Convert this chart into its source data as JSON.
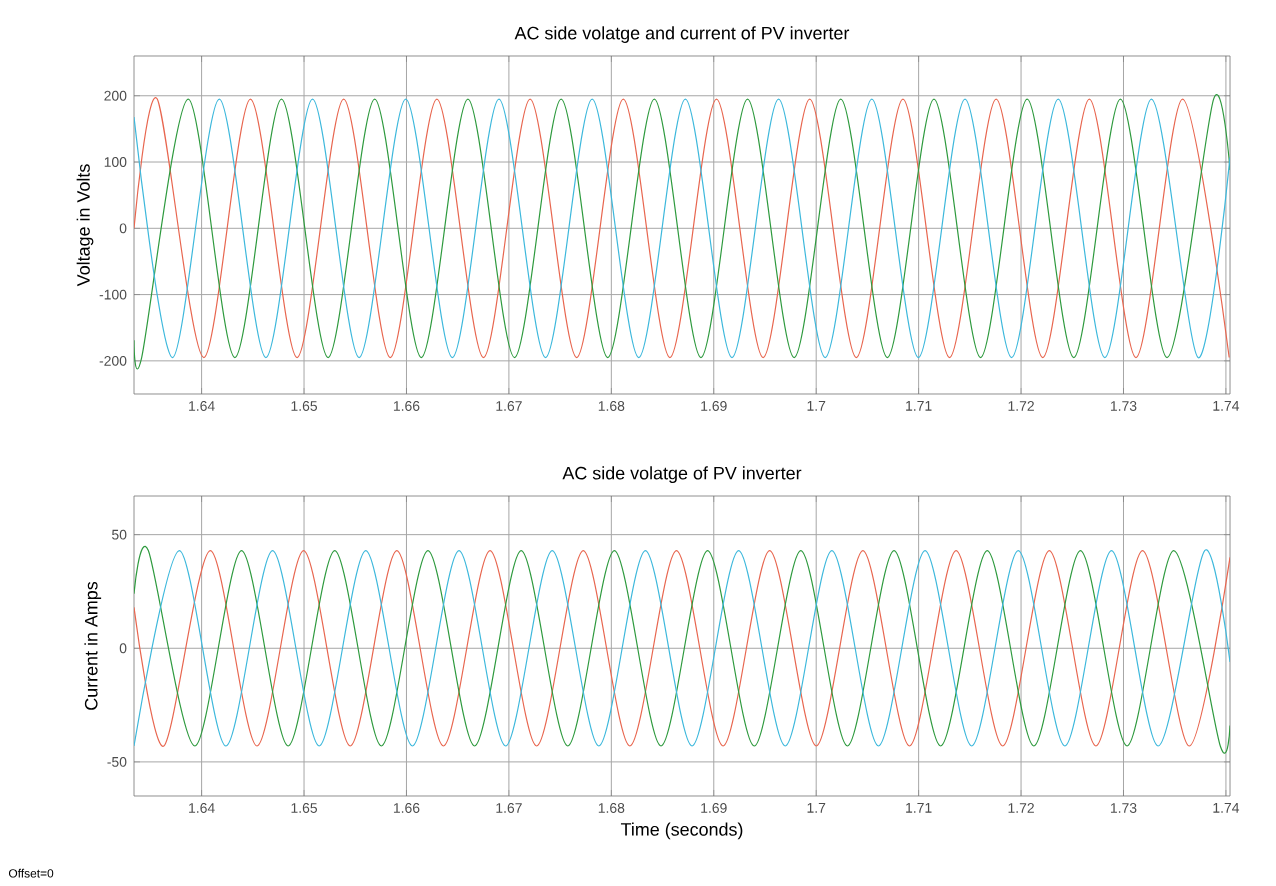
{
  "chart_data": [
    {
      "type": "line",
      "title": "AC side volatge and current of PV inverter",
      "ylabel": "Voltage in Volts",
      "xlim": [
        1.6334,
        1.7404
      ],
      "ylim": [
        -250,
        260
      ],
      "xticks": [
        1.64,
        1.65,
        1.66,
        1.67,
        1.68,
        1.69,
        1.7,
        1.71,
        1.72,
        1.73,
        1.74
      ],
      "yticks": [
        -200,
        -100,
        0,
        100,
        200
      ],
      "grid": true,
      "series": [
        {
          "color": "#e8664f",
          "x": [
            1.6334,
            1.63567,
            1.64022,
            1.64477,
            1.64932,
            1.65387,
            1.65842,
            1.66297,
            1.66752,
            1.67207,
            1.67662,
            1.68117,
            1.68572,
            1.69027,
            1.69482,
            1.69937,
            1.70392,
            1.70847,
            1.71302,
            1.71757,
            1.72212,
            1.72667,
            1.73122,
            1.73577,
            1.74032
          ],
          "values": [
            0,
            195,
            -195,
            195,
            -195,
            195,
            -195,
            195,
            -195,
            195,
            -195,
            195,
            -195,
            195,
            -195,
            195,
            -195,
            195,
            -195,
            195,
            -195,
            195,
            -195,
            195,
            -195
          ]
        },
        {
          "color": "#2e9a3e",
          "x": [
            1.6334,
            1.63415,
            1.6387,
            1.64325,
            1.6478,
            1.65235,
            1.6569,
            1.66145,
            1.666,
            1.67055,
            1.6751,
            1.67965,
            1.6842,
            1.68875,
            1.6933,
            1.69785,
            1.7024,
            1.70695,
            1.7115,
            1.71605,
            1.7206,
            1.72515,
            1.7297,
            1.73425,
            1.7388,
            1.7404
          ],
          "values": [
            -169,
            -195,
            195,
            -195,
            195,
            -195,
            195,
            -195,
            195,
            -195,
            195,
            -195,
            195,
            -195,
            195,
            -195,
            195,
            -195,
            195,
            -195,
            195,
            -195,
            195,
            -195,
            195,
            88
          ]
        },
        {
          "color": "#3db8dc",
          "x": [
            1.6334,
            1.63718,
            1.64173,
            1.64628,
            1.65083,
            1.65538,
            1.65993,
            1.66448,
            1.66903,
            1.67358,
            1.67813,
            1.68268,
            1.68723,
            1.69178,
            1.69633,
            1.70088,
            1.70543,
            1.70998,
            1.71453,
            1.71908,
            1.72363,
            1.72818,
            1.73273,
            1.73728,
            1.7404
          ],
          "values": [
            168,
            -195,
            195,
            -195,
            195,
            -195,
            195,
            -195,
            195,
            -195,
            195,
            -195,
            195,
            -195,
            195,
            -195,
            195,
            -195,
            195,
            -195,
            195,
            -195,
            195,
            -195,
            107
          ]
        }
      ]
    },
    {
      "type": "line",
      "title": "AC side volatge of PV inverter",
      "xlabel": "Time (seconds)",
      "ylabel": "Current in Amps",
      "xlim": [
        1.6334,
        1.7404
      ],
      "ylim": [
        -65,
        67
      ],
      "xticks": [
        1.64,
        1.65,
        1.66,
        1.67,
        1.68,
        1.69,
        1.7,
        1.71,
        1.72,
        1.73,
        1.74
      ],
      "yticks": [
        -50,
        0,
        50
      ],
      "grid": true,
      "annotations": [
        "Offset=0"
      ],
      "series": [
        {
          "color": "#e8664f",
          "x": [
            1.6334,
            1.63631,
            1.64086,
            1.64541,
            1.64996,
            1.65451,
            1.65906,
            1.66361,
            1.66816,
            1.67271,
            1.67726,
            1.68181,
            1.68636,
            1.69091,
            1.69546,
            1.70001,
            1.70456,
            1.70911,
            1.71366,
            1.71821,
            1.72276,
            1.72731,
            1.73186,
            1.73641,
            1.7404
          ],
          "values": [
            18,
            -43,
            43,
            -43,
            43,
            -43,
            43,
            -43,
            43,
            -43,
            43,
            -43,
            43,
            -43,
            43,
            -43,
            43,
            -43,
            43,
            -43,
            43,
            -43,
            43,
            -43,
            40
          ]
        },
        {
          "color": "#2e9a3e",
          "x": [
            1.6334,
            1.6348,
            1.63935,
            1.6439,
            1.64845,
            1.653,
            1.65755,
            1.6621,
            1.66665,
            1.6712,
            1.67575,
            1.6803,
            1.68485,
            1.6894,
            1.69395,
            1.6985,
            1.70305,
            1.7076,
            1.71215,
            1.7167,
            1.72125,
            1.7258,
            1.73035,
            1.7349,
            1.73945,
            1.7404
          ],
          "values": [
            24,
            43,
            -43,
            43,
            -43,
            43,
            -43,
            43,
            -43,
            43,
            -43,
            43,
            -43,
            43,
            -43,
            43,
            -43,
            43,
            -43,
            43,
            -43,
            43,
            -43,
            43,
            -43,
            -34
          ]
        },
        {
          "color": "#3db8dc",
          "x": [
            1.6334,
            1.63783,
            1.64238,
            1.64693,
            1.65148,
            1.65603,
            1.66058,
            1.66513,
            1.66968,
            1.67423,
            1.67878,
            1.68333,
            1.68788,
            1.69243,
            1.69698,
            1.70153,
            1.70608,
            1.71063,
            1.71518,
            1.71973,
            1.72428,
            1.72883,
            1.73338,
            1.73793,
            1.7404
          ],
          "values": [
            -43,
            43,
            -43,
            43,
            -43,
            43,
            -43,
            43,
            -43,
            43,
            -43,
            43,
            -43,
            43,
            -43,
            43,
            -43,
            43,
            -43,
            43,
            -43,
            43,
            -43,
            43,
            -6
          ]
        }
      ]
    }
  ]
}
